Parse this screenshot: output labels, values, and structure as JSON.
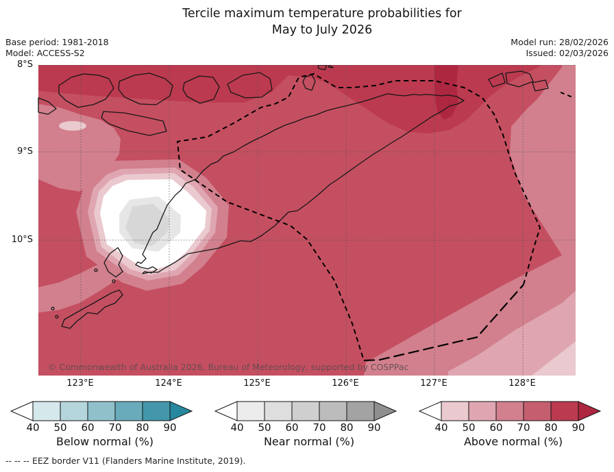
{
  "title": {
    "line1": "Tercile maximum temperature probabilities for",
    "line2": "May to July 2026"
  },
  "meta_left": {
    "base_period": "Base period: 1981-2018",
    "model": "Model: ACCESS-S2"
  },
  "meta_right": {
    "model_run": "Model run: 28/02/2026",
    "issued": "Issued: 02/03/2026"
  },
  "map": {
    "copyright": "© Commonwealth of Australia 2026, Bureau of Meteorology, supported by COSPPac",
    "y_ticks": [
      "8°S",
      "9°S",
      "10°S"
    ],
    "x_ticks": [
      "123°E",
      "124°E",
      "125°E",
      "126°E",
      "127°E",
      "128°E"
    ]
  },
  "palette": {
    "p40": "#eac9cf",
    "p50": "#dfa6b1",
    "p60": "#d2808e",
    "p70": "#c44f61",
    "p80": "#bb3a4f",
    "p90": "#ae2741",
    "white": "#ffffff",
    "g40": "#e6e6e6",
    "g50": "#d7d7d7",
    "coast": "#161616",
    "grid": "#555555",
    "eez": "#000000"
  },
  "legend": {
    "tick_labels": [
      "40",
      "50",
      "60",
      "70",
      "80",
      "90"
    ],
    "bars": [
      {
        "label": "Below normal (%)",
        "segment_colors": [
          "#d5e8ec",
          "#b4d5db",
          "#90c1cb",
          "#69abba",
          "#4497aa"
        ],
        "arrow_color": "#26879e",
        "left_arrow_color": "#ffffff"
      },
      {
        "label": "Near normal (%)",
        "segment_colors": [
          "#ececec",
          "#dedede",
          "#cfcfcf",
          "#bcbcbc",
          "#a3a3a3"
        ],
        "arrow_color": "#8f8f8f",
        "left_arrow_color": "#ffffff"
      },
      {
        "label": "Above normal (%)",
        "segment_colors": [
          "#eac9cf",
          "#dfa6b1",
          "#d2808e",
          "#c55f70",
          "#bb3a4f"
        ],
        "arrow_color": "#ae2741",
        "left_arrow_color": "#ffffff"
      }
    ]
  },
  "footnote": "--  --  -- EEZ border V11 (Flanders Marine Institute, 2019).",
  "chart_data": {
    "type": "filled_contour_map",
    "title": "Tercile maximum temperature probabilities for May to July 2026",
    "base_period": "1981-2018",
    "model": "ACCESS-S2",
    "model_run": "28/02/2026",
    "issued": "02/03/2026",
    "x_axis": {
      "tick_labels": [
        "123°E",
        "124°E",
        "125°E",
        "126°E",
        "127°E",
        "128°E"
      ],
      "tick_values_deg_east": [
        123,
        124,
        125,
        126,
        127,
        128
      ],
      "approx_range_deg_east": [
        122.5,
        128.6
      ]
    },
    "y_axis": {
      "tick_labels": [
        "8°S",
        "9°S",
        "10°S"
      ],
      "tick_values_deg_south": [
        8,
        9,
        10
      ],
      "approx_range_deg_south": [
        8.0,
        11.5
      ]
    },
    "grid": "dotted 1-degree graticule",
    "probability_scales": [
      {
        "name": "Below normal (%)",
        "levels": [
          40,
          50,
          60,
          70,
          80,
          90
        ],
        "colors": [
          "#d5e8ec",
          "#b4d5db",
          "#90c1cb",
          "#69abba",
          "#4497aa",
          "#26879e"
        ]
      },
      {
        "name": "Near normal (%)",
        "levels": [
          40,
          50,
          60,
          70,
          80,
          90
        ],
        "colors": [
          "#ececec",
          "#dedede",
          "#cfcfcf",
          "#bcbcbc",
          "#a3a3a3",
          "#8f8f8f"
        ]
      },
      {
        "name": "Above normal (%)",
        "levels": [
          40,
          50,
          60,
          70,
          80,
          90
        ],
        "colors": [
          "#eac9cf",
          "#dfa6b1",
          "#d2808e",
          "#c55f70",
          "#bb3a4f",
          "#ae2741"
        ]
      }
    ],
    "depicted_features": [
      {
        "area": "most of the Timor region map",
        "category": "above normal",
        "probability_pct": "60-80"
      },
      {
        "area": "band along the northern edge (8°S)",
        "category": "above normal",
        "probability_pct": "80-90"
      },
      {
        "area": "small vertical patch near 127°E at the top edge",
        "category": "above normal",
        "probability_pct": ">90"
      },
      {
        "area": "pocket over West Timor / Kupang (~123.8°E, 9.7°S)",
        "category": "near normal",
        "probability_pct": "40-60 (white-to-grey core)"
      },
      {
        "area": "eastern flank and south-east corner",
        "category": "above normal",
        "probability_pct": "40-60"
      },
      {
        "area": "left (western) edge bands",
        "category": "above normal",
        "probability_pct": "50-60"
      }
    ],
    "overlays": [
      "island coastlines (solid black)",
      "EEZ border V11 (dashed black)",
      "copyright annotation"
    ]
  }
}
